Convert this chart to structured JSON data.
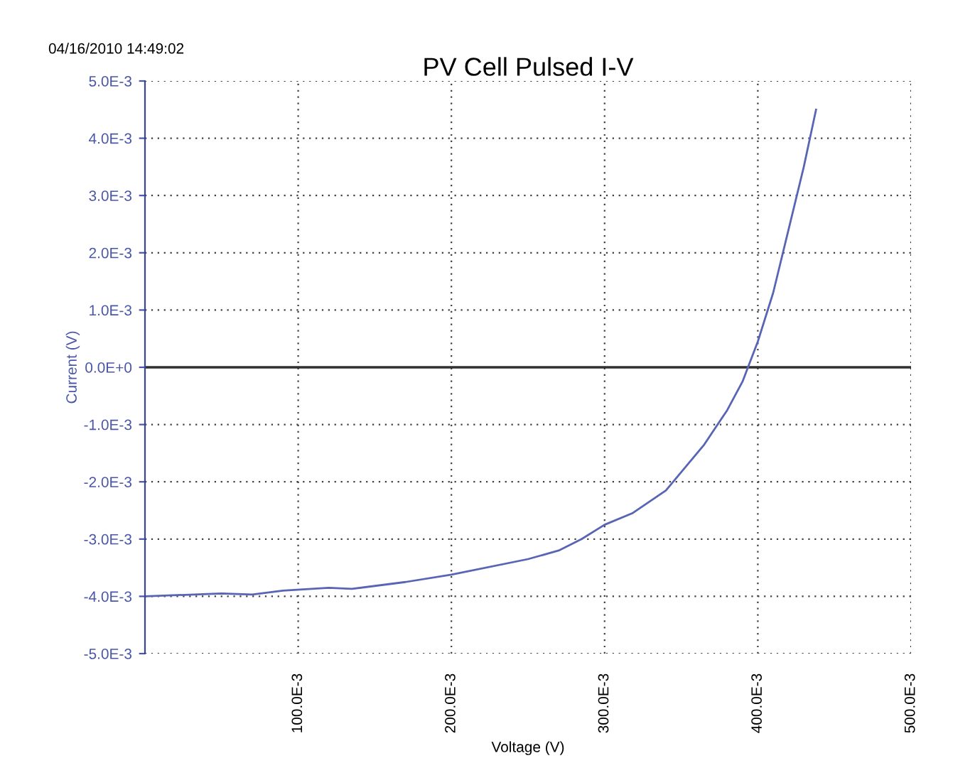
{
  "chart_data": {
    "type": "line",
    "title": "PV Cell Pulsed I-V",
    "xlabel": "Voltage (V)",
    "ylabel": "Current (V)",
    "annotations": [
      "04/16/2010 14:49:02"
    ],
    "series": [
      {
        "color": "#5865b4",
        "x": [
          0,
          0.05,
          0.07,
          0.09,
          0.12,
          0.135,
          0.17,
          0.2,
          0.25,
          0.27,
          0.285,
          0.3,
          0.318,
          0.34,
          0.365,
          0.38,
          0.39,
          0.4,
          0.41,
          0.42,
          0.43,
          0.438
        ],
        "values": [
          -0.004,
          -0.00395,
          -0.00397,
          -0.0039,
          -0.00385,
          -0.00387,
          -0.00375,
          -0.00362,
          -0.00335,
          -0.0032,
          -0.003,
          -0.00275,
          -0.00255,
          -0.00215,
          -0.00135,
          -0.00075,
          -0.00025,
          0.00045,
          0.0013,
          0.0024,
          0.0035,
          0.0045
        ]
      }
    ],
    "xlim": [
      0,
      0.5
    ],
    "ylim": [
      -0.005,
      0.005
    ],
    "xticks": [
      {
        "value": 0.1,
        "label": "100.0E-3"
      },
      {
        "value": 0.2,
        "label": "200.0E-3"
      },
      {
        "value": 0.3,
        "label": "300.0E-3"
      },
      {
        "value": 0.4,
        "label": "400.0E-3"
      },
      {
        "value": 0.5,
        "label": "500.0E-3"
      }
    ],
    "yticks": [
      {
        "value": -0.005,
        "label": "-5.0E-3"
      },
      {
        "value": -0.004,
        "label": "-4.0E-3"
      },
      {
        "value": -0.003,
        "label": "-3.0E-3"
      },
      {
        "value": -0.002,
        "label": "-2.0E-3"
      },
      {
        "value": -0.001,
        "label": "-1.0E-3"
      },
      {
        "value": 0,
        "label": "0.0E+0"
      },
      {
        "value": 0.001,
        "label": "1.0E-3"
      },
      {
        "value": 0.002,
        "label": "2.0E-3"
      },
      {
        "value": 0.003,
        "label": "3.0E-3"
      },
      {
        "value": 0.004,
        "label": "4.0E-3"
      },
      {
        "value": 0.005,
        "label": "5.0E-3"
      }
    ],
    "ref_lines": [
      {
        "axis": "y",
        "value": 0,
        "color": "#303030"
      }
    ],
    "grid": true,
    "line_style": "solid"
  }
}
